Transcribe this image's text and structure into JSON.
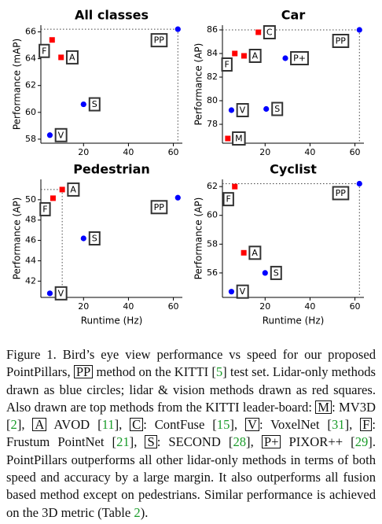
{
  "chart_data": [
    {
      "type": "scatter",
      "title": "All classes",
      "ylabel": "Performance (mAP)",
      "x": [
        62,
        6,
        10,
        20,
        5
      ],
      "values": [
        66.2,
        65.4,
        64.1,
        60.6,
        58.3
      ],
      "point_labels": [
        "PP",
        "F",
        "A",
        "S",
        "V"
      ],
      "point_colors": [
        "#0000ff",
        "#ff0000",
        "#ff0000",
        "#0000ff",
        "#0000ff"
      ],
      "point_markers": [
        "circle",
        "square",
        "square",
        "circle",
        "circle"
      ],
      "xlim": [
        1,
        64
      ],
      "ylim": [
        57.7,
        66.5
      ],
      "xticks": [
        20,
        40,
        60
      ],
      "yticks": [
        58,
        60,
        62,
        64,
        66
      ]
    },
    {
      "type": "scatter",
      "title": "Car",
      "ylabel": "Performance (AP)",
      "x": [
        62,
        17,
        6.5,
        10.6,
        29,
        5,
        20.5,
        3.4
      ],
      "values": [
        86.0,
        85.8,
        84.0,
        83.8,
        83.6,
        79.2,
        79.3,
        76.8
      ],
      "point_labels": [
        "PP",
        "C",
        "F",
        "A",
        "P+",
        "V",
        "S",
        "M"
      ],
      "point_colors": [
        "#0000ff",
        "#ff0000",
        "#ff0000",
        "#ff0000",
        "#0000ff",
        "#0000ff",
        "#0000ff",
        "#ff0000"
      ],
      "point_markers": [
        "circle",
        "square",
        "square",
        "square",
        "circle",
        "circle",
        "circle",
        "square"
      ],
      "xlim": [
        1,
        64
      ],
      "ylim": [
        76.4,
        86.4
      ],
      "xticks": [
        20,
        40,
        60
      ],
      "yticks": [
        78,
        80,
        82,
        84,
        86
      ]
    },
    {
      "type": "scatter",
      "title": "Pedestrian",
      "ylabel": "Performance (AP)",
      "xlabel": "Runtime (Hz)",
      "x": [
        62,
        6.4,
        10.5,
        20,
        5
      ],
      "values": [
        50.2,
        50.15,
        51.0,
        46.2,
        40.8
      ],
      "point_labels": [
        "PP",
        "F",
        "A",
        "S",
        "V"
      ],
      "point_colors": [
        "#0000ff",
        "#ff0000",
        "#ff0000",
        "#0000ff",
        "#0000ff"
      ],
      "point_markers": [
        "circle",
        "square",
        "square",
        "circle",
        "circle"
      ],
      "xlim": [
        1,
        64
      ],
      "ylim": [
        40.4,
        52.0
      ],
      "xticks": [
        20,
        40,
        60
      ],
      "yticks": [
        42,
        44,
        46,
        48,
        50
      ]
    },
    {
      "type": "scatter",
      "title": "Cyclist",
      "ylabel": "Performance (AP)",
      "xlabel": "Runtime (Hz)",
      "x": [
        62,
        6.5,
        10.5,
        20,
        5
      ],
      "values": [
        62.2,
        62.0,
        57.4,
        56.0,
        54.7
      ],
      "point_labels": [
        "PP",
        "F",
        "A",
        "S",
        "V"
      ],
      "point_colors": [
        "#0000ff",
        "#ff0000",
        "#ff0000",
        "#0000ff",
        "#0000ff"
      ],
      "point_markers": [
        "circle",
        "square",
        "square",
        "circle",
        "circle"
      ],
      "xlim": [
        1,
        64
      ],
      "ylim": [
        54.3,
        62.5
      ],
      "xticks": [
        20,
        40,
        60
      ],
      "yticks": [
        56,
        58,
        60,
        62
      ]
    }
  ],
  "caption": [
    {
      "text": "Figure 1. Bird’s eye view performance vs speed for our proposed PointPillars, "
    },
    {
      "box": "PP"
    },
    {
      "text": " method on the KITTI ["
    },
    {
      "cite": "5"
    },
    {
      "text": "] test set. Lidar-only methods drawn as blue circles; lidar & vision methods drawn as red squares. Also drawn are top methods from the KITTI leader-board: "
    },
    {
      "box": "M"
    },
    {
      "text": ": MV3D ["
    },
    {
      "cite": "2"
    },
    {
      "text": "], "
    },
    {
      "box": "A"
    },
    {
      "text": " AVOD ["
    },
    {
      "cite": "11"
    },
    {
      "text": "], "
    },
    {
      "box": "C"
    },
    {
      "text": ": ContFuse ["
    },
    {
      "cite": "15"
    },
    {
      "text": "], "
    },
    {
      "box": "V"
    },
    {
      "text": ": VoxelNet ["
    },
    {
      "cite": "31"
    },
    {
      "text": "], "
    },
    {
      "box": "F"
    },
    {
      "text": ": Frustum PointNet ["
    },
    {
      "cite": "21"
    },
    {
      "text": "], "
    },
    {
      "box": "S"
    },
    {
      "text": ": SECOND ["
    },
    {
      "cite": "28"
    },
    {
      "text": "], "
    },
    {
      "box": "P+"
    },
    {
      "text": " PIXOR++ ["
    },
    {
      "cite": "29"
    },
    {
      "text": "]. PointPillars outperforms all other lidar-only methods in terms of both speed and accuracy by a large margin. It also outperforms all fusion based method except on pedestrians. Similar performance is achieved on the 3D metric (Table "
    },
    {
      "cite": "2"
    },
    {
      "text": ")."
    }
  ]
}
